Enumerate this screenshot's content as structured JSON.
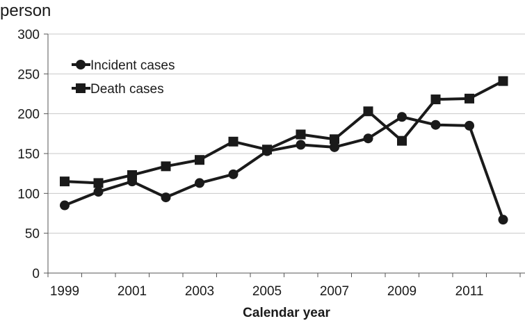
{
  "chart_data": {
    "type": "line",
    "unit_label": "person",
    "xlabel": "Calendar year",
    "ylabel": "",
    "ylim": [
      0,
      300
    ],
    "yticks": [
      0,
      50,
      100,
      150,
      200,
      250,
      300
    ],
    "xticks": [
      1999,
      2001,
      2003,
      2005,
      2007,
      2009,
      2011
    ],
    "xlim": [
      1999,
      2012
    ],
    "grid": "horizontal",
    "legend_position": "top-left",
    "series": [
      {
        "name": "Incident cases",
        "marker": "circle",
        "color": "#1a1a1a",
        "x": [
          1999,
          2000,
          2001,
          2002,
          2003,
          2004,
          2005,
          2006,
          2007,
          2008,
          2009,
          2010,
          2011,
          2012
        ],
        "values": [
          85,
          102,
          115,
          95,
          113,
          124,
          153,
          161,
          158,
          169,
          196,
          186,
          185,
          67
        ]
      },
      {
        "name": "Death cases",
        "marker": "square",
        "color": "#1a1a1a",
        "x": [
          1999,
          2000,
          2001,
          2002,
          2003,
          2004,
          2005,
          2006,
          2007,
          2008,
          2009,
          2010,
          2011,
          2012
        ],
        "values": [
          115,
          113,
          123,
          134,
          142,
          165,
          155,
          174,
          168,
          203,
          166,
          218,
          219,
          241
        ]
      }
    ]
  }
}
